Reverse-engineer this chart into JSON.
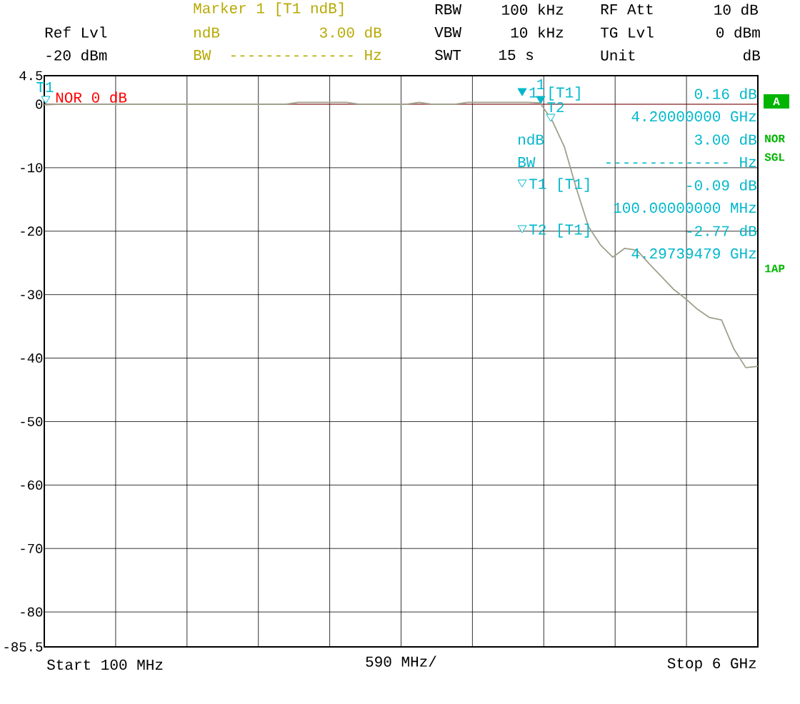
{
  "chart_data": {
    "type": "line",
    "xlabel": "590 MHz/",
    "categories": [
      null,
      null,
      null,
      null,
      null,
      null,
      null,
      null,
      null,
      null,
      null,
      null,
      null,
      null,
      null,
      null,
      null,
      null,
      null,
      null,
      null,
      null,
      null,
      null,
      null,
      null,
      null,
      null,
      null,
      null,
      null,
      null,
      null,
      null,
      null,
      null,
      null,
      null,
      null,
      null,
      null,
      null,
      null,
      null,
      null,
      null,
      null,
      null,
      null,
      null,
      null,
      null,
      null,
      null,
      null,
      null,
      null,
      null,
      null,
      null
    ],
    "values": [
      -0.1,
      0,
      0,
      0,
      0,
      0,
      0,
      0,
      0,
      0,
      0,
      0,
      0,
      0,
      0,
      0,
      0,
      0,
      0,
      0,
      0,
      0.3,
      0.3,
      0.3,
      0.3,
      0.3,
      0,
      0,
      0,
      0,
      0,
      0.3,
      0,
      0,
      0,
      0.3,
      0.3,
      0.3,
      0.3,
      0.3,
      0.3,
      0.2,
      -2.6,
      -6.7,
      -13.3,
      -19.3,
      -22.2,
      -24.1,
      -22.7,
      -23.0,
      -25.1,
      -27.1,
      -29.1,
      -30.6,
      -32.3,
      -33.6,
      -34.0,
      -38.5,
      -41.5,
      -41.3
    ],
    "color": "#a0a08c",
    "ylim": [
      -85.5,
      4.5
    ],
    "yticks": [
      4.5,
      0,
      -10,
      -20,
      -30,
      -40,
      -50,
      -60,
      -70,
      -80,
      -85.5
    ],
    "grid": true,
    "ref_lines": [
      {
        "axis": "y",
        "value": 0,
        "label": "NOR 0 dB",
        "color": "#ff0000"
      }
    ],
    "annotations": [
      "Marker 1 [T1 ndB]",
      "Ref Lvl",
      "ndB",
      "3.00 dB",
      "-20 dBm",
      "BW",
      "-------------- Hz",
      "RBW",
      "100 kHz",
      "VBW",
      "10 kHz",
      "SWT",
      "15 s",
      "RF Att",
      "10 dB",
      "TG Lvl",
      "0 dBm",
      "Unit",
      "dB",
      "1 [T1]",
      "0.16 dB",
      "4.20000000 GHz",
      "ndB",
      "3.00 dB",
      "BW",
      "-------------- Hz",
      "T1 [T1]",
      "-0.09 dB",
      "100.00000000 MHz",
      "T2 [T1]",
      "-2.77 dB",
      "4.29739479 GHz",
      "A",
      "NOR",
      "SGL",
      "1AP",
      "Start 100 MHz",
      "Stop 6 GHz",
      "T1",
      "1",
      "T2"
    ]
  }
}
